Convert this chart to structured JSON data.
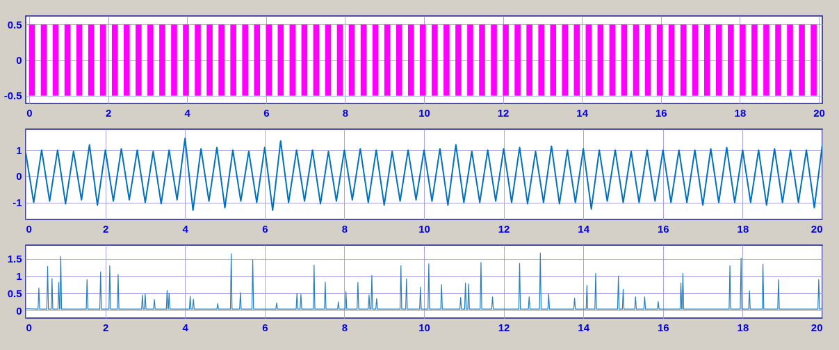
{
  "chart_data": [
    {
      "type": "bar",
      "x": [
        0.07,
        0.37,
        0.67,
        0.97,
        1.27,
        1.57,
        1.87,
        2.17,
        2.47,
        2.77,
        3.07,
        3.37,
        3.67,
        3.97,
        4.27,
        4.57,
        4.87,
        5.17,
        5.47,
        5.77,
        6.07,
        6.37,
        6.67,
        6.97,
        7.27,
        7.57,
        7.87,
        8.17,
        8.47,
        8.77,
        9.07,
        9.37,
        9.67,
        9.97,
        10.27,
        10.57,
        10.87,
        11.17,
        11.47,
        11.77,
        12.07,
        12.37,
        12.67,
        12.97,
        13.27,
        13.57,
        13.87,
        14.17,
        14.47,
        14.77,
        15.07,
        15.37,
        15.67,
        15.97,
        16.27,
        16.57,
        16.87,
        17.17,
        17.47,
        17.77,
        18.07,
        18.37,
        18.67,
        18.97,
        19.27,
        19.57,
        19.87
      ],
      "values": [
        1,
        1,
        1,
        1,
        1,
        1,
        1,
        1,
        1,
        1,
        1,
        1,
        1,
        1,
        1,
        1,
        1,
        1,
        1,
        1,
        1,
        1,
        1,
        1,
        1,
        1,
        1,
        1,
        1,
        1,
        1,
        1,
        1,
        1,
        1,
        1,
        1,
        1,
        1,
        1,
        1,
        1,
        1,
        1,
        1,
        1,
        1,
        1,
        1,
        1,
        1,
        1,
        1,
        1,
        1,
        1,
        1,
        1,
        1,
        1,
        1,
        1,
        1,
        1,
        1,
        1,
        1
      ],
      "base": [
        -0.5,
        -0.5,
        -0.5,
        -0.5,
        -0.5,
        -0.5,
        -0.5,
        -0.5,
        -0.5,
        -0.5,
        -0.5,
        -0.5,
        -0.5,
        -0.5,
        -0.5,
        -0.5,
        -0.5,
        -0.5,
        -0.5,
        -0.5,
        -0.5,
        -0.5,
        -0.5,
        -0.5,
        -0.5,
        -0.5,
        -0.5,
        -0.5,
        -0.5,
        -0.5,
        -0.5,
        -0.5,
        -0.5,
        -0.5,
        -0.5,
        -0.5,
        -0.5,
        -0.5,
        -0.5,
        -0.5,
        -0.5,
        -0.5,
        -0.5,
        -0.5,
        -0.5,
        -0.5,
        -0.5,
        -0.5,
        -0.5,
        -0.5,
        -0.5,
        -0.5,
        -0.5,
        -0.5,
        -0.5,
        -0.5,
        -0.5,
        -0.5,
        -0.5,
        -0.5,
        -0.5,
        -0.5,
        -0.5,
        -0.5,
        -0.5,
        -0.5,
        -0.5
      ],
      "color": "#ff00ff",
      "xlim": [
        0,
        20
      ],
      "xticks": [
        0,
        2,
        4,
        6,
        8,
        10,
        12,
        14,
        16,
        18,
        20
      ],
      "ylim": [
        -0.61,
        0.62
      ],
      "yticks": [
        -0.5,
        0,
        0.5
      ],
      "grid": true
    },
    {
      "type": "line",
      "x": [
        0,
        0.2,
        0.4,
        0.6,
        0.8,
        1,
        1.2,
        1.4,
        1.6,
        1.8,
        2,
        2.2,
        2.4,
        2.6,
        2.8,
        3,
        3.2,
        3.4,
        3.6,
        3.8,
        4,
        4.2,
        4.4,
        4.6,
        4.8,
        5,
        5.2,
        5.4,
        5.6,
        5.8,
        6,
        6.2,
        6.4,
        6.6,
        6.8,
        7,
        7.2,
        7.4,
        7.6,
        7.8,
        8,
        8.2,
        8.4,
        8.6,
        8.8,
        9,
        9.2,
        9.4,
        9.6,
        9.8,
        10,
        10.2,
        10.4,
        10.6,
        10.8,
        11,
        11.2,
        11.4,
        11.6,
        11.8,
        12,
        12.2,
        12.4,
        12.6,
        12.8,
        13,
        13.2,
        13.4,
        13.6,
        13.8,
        14,
        14.2,
        14.4,
        14.6,
        14.8,
        15,
        15.2,
        15.4,
        15.6,
        15.8,
        16,
        16.2,
        16.4,
        16.6,
        16.8,
        17,
        17.2,
        17.4,
        17.6,
        17.8,
        18,
        18.2,
        18.4,
        18.6,
        18.8,
        19,
        19.2,
        19.4,
        19.6,
        19.8,
        20
      ],
      "values": [
        0.9,
        -1,
        1,
        -0.95,
        1,
        -1.05,
        0.95,
        -0.9,
        1.2,
        -1.1,
        1,
        -0.95,
        1.05,
        -0.9,
        1,
        -1,
        0.95,
        -1.05,
        1,
        -0.9,
        1.45,
        -1.3,
        1.05,
        -0.95,
        1.1,
        -1.2,
        1,
        -0.95,
        0.95,
        -1,
        1.1,
        -1.3,
        1.35,
        -1,
        1,
        -0.95,
        1,
        -1.05,
        0.95,
        -0.95,
        1,
        -0.9,
        1.05,
        -1,
        1,
        -1.1,
        0.95,
        -0.95,
        1,
        -0.9,
        1,
        -0.95,
        1.05,
        -1.1,
        1.2,
        -1,
        0.95,
        -1,
        1,
        -0.95,
        1.05,
        -1,
        1.1,
        -1.05,
        0.95,
        -1,
        1.15,
        -1.05,
        1,
        -1,
        1.05,
        -1.25,
        1,
        -0.95,
        1,
        -1,
        0.95,
        -1,
        1,
        -0.95,
        1,
        -1,
        1,
        -1,
        1,
        -1.1,
        1.05,
        -1,
        1.1,
        -1,
        1,
        -1,
        1,
        -1.1,
        1.05,
        -1,
        1,
        -1,
        1,
        -1.2,
        1.2
      ],
      "color": "#0072bd",
      "xlim": [
        0,
        20
      ],
      "xticks": [
        0,
        2,
        4,
        6,
        8,
        10,
        12,
        14,
        16,
        18,
        20
      ],
      "ylim": [
        -1.65,
        1.8
      ],
      "yticks": [
        -1,
        0,
        1
      ],
      "grid": true
    },
    {
      "type": "line",
      "x": [
        0,
        0.31,
        0.33,
        0.35,
        0.53,
        0.55,
        0.57,
        0.64,
        0.66,
        0.68,
        0.81,
        0.83,
        0.85,
        0.86,
        0.88,
        0.9,
        1.52,
        1.54,
        1.56,
        1.86,
        1.88,
        1.9,
        2.09,
        2.11,
        2.13,
        2.3,
        2.32,
        2.34,
        2.91,
        2.93,
        2.95,
        2.98,
        3,
        3.02,
        3.21,
        3.23,
        3.25,
        3.53,
        3.55,
        3.57,
        3.58,
        3.6,
        3.62,
        4.11,
        4.13,
        4.15,
        4.19,
        4.21,
        4.23,
        4.8,
        4.82,
        4.84,
        5.14,
        5.16,
        5.18,
        5.37,
        5.39,
        5.41,
        5.68,
        5.7,
        5.72,
        6.28,
        6.3,
        6.32,
        6.79,
        6.81,
        6.83,
        6.89,
        6.91,
        6.93,
        7.22,
        7.24,
        7.26,
        7.5,
        7.52,
        7.54,
        7.83,
        7.85,
        7.87,
        8.02,
        8.04,
        8.06,
        8.32,
        8.34,
        8.36,
        8.6,
        8.62,
        8.64,
        8.67,
        8.69,
        8.71,
        8.79,
        8.81,
        8.83,
        9.4,
        9.42,
        9.44,
        9.54,
        9.56,
        9.58,
        9.89,
        9.91,
        9.93,
        10.1,
        10.12,
        10.14,
        10.42,
        10.44,
        10.46,
        10.9,
        10.92,
        10.94,
        11.02,
        11.04,
        11.06,
        11.1,
        11.12,
        11.14,
        11.41,
        11.43,
        11.45,
        11.7,
        11.72,
        11.74,
        12.38,
        12.4,
        12.42,
        12.62,
        12.64,
        12.66,
        12.9,
        12.92,
        12.94,
        13.11,
        13.13,
        13.15,
        13.76,
        13.78,
        13.8,
        14.07,
        14.09,
        14.11,
        14.29,
        14.31,
        14.33,
        14.86,
        14.88,
        14.9,
        14.98,
        15,
        15.02,
        15.29,
        15.31,
        15.33,
        15.52,
        15.54,
        15.56,
        15.86,
        15.88,
        15.9,
        16.43,
        16.45,
        16.47,
        16.48,
        16.5,
        16.52,
        17.66,
        17.68,
        17.7,
        17.94,
        17.96,
        17.98,
        18.15,
        18.17,
        18.19,
        18.49,
        18.51,
        18.53,
        18.88,
        18.9,
        18.92,
        19.89,
        19.91,
        19.93,
        20
      ],
      "values": [
        0.05,
        0.04,
        0.65,
        0.04,
        0.04,
        1.28,
        0.04,
        0.04,
        0.93,
        0.04,
        0.04,
        0.82,
        0.04,
        0.04,
        1.57,
        0.04,
        0.04,
        0.9,
        0.04,
        0.04,
        1.12,
        0.04,
        0.04,
        1.3,
        0.04,
        0.04,
        1.05,
        0.04,
        0.04,
        0.45,
        0.04,
        0.04,
        0.48,
        0.04,
        0.04,
        0.32,
        0.04,
        0.04,
        0.58,
        0.04,
        0.04,
        0.5,
        0.04,
        0.04,
        0.42,
        0.04,
        0.04,
        0.33,
        0.04,
        0.04,
        0.2,
        0.04,
        0.04,
        1.65,
        0.04,
        0.04,
        0.52,
        0.04,
        0.04,
        1.47,
        0.04,
        0.04,
        0.22,
        0.04,
        0.04,
        0.5,
        0.04,
        0.04,
        0.47,
        0.04,
        0.04,
        1.32,
        0.04,
        0.04,
        0.83,
        0.04,
        0.04,
        0.25,
        0.04,
        0.04,
        0.55,
        0.04,
        0.04,
        0.82,
        0.04,
        0.04,
        0.45,
        0.04,
        0.04,
        1.02,
        0.04,
        0.04,
        0.35,
        0.04,
        0.04,
        1.3,
        0.04,
        0.04,
        0.92,
        0.04,
        0.04,
        0.68,
        0.04,
        0.04,
        1.36,
        0.04,
        0.04,
        0.75,
        0.04,
        0.04,
        0.38,
        0.04,
        0.04,
        0.8,
        0.04,
        0.04,
        0.77,
        0.04,
        0.04,
        1.4,
        0.04,
        0.04,
        0.4,
        0.04,
        0.04,
        1.37,
        0.04,
        0.04,
        0.4,
        0.04,
        0.04,
        1.67,
        0.04,
        0.04,
        0.48,
        0.04,
        0.04,
        0.36,
        0.04,
        0.04,
        0.73,
        0.04,
        0.04,
        1.08,
        0.04,
        0.04,
        1,
        0.04,
        0.04,
        0.62,
        0.04,
        0.04,
        0.4,
        0.04,
        0.04,
        0.4,
        0.04,
        0.04,
        0.26,
        0.04,
        0.04,
        0.8,
        0.04,
        0.04,
        1.08,
        0.04,
        0.04,
        1.3,
        0.04,
        0.04,
        1.52,
        0.04,
        0.04,
        0.57,
        0.04,
        0.04,
        1.35,
        0.04,
        0.04,
        0.9,
        0.04,
        0.04,
        0.9,
        0.04,
        0.05
      ],
      "color": "#2a7fb8",
      "xlim": [
        0,
        20
      ],
      "xticks": [
        0,
        2,
        4,
        6,
        8,
        10,
        12,
        14,
        16,
        18,
        20
      ],
      "ylim": [
        -0.22,
        1.9
      ],
      "yticks": [
        0,
        0.5,
        1,
        1.5
      ],
      "grid": true
    }
  ]
}
